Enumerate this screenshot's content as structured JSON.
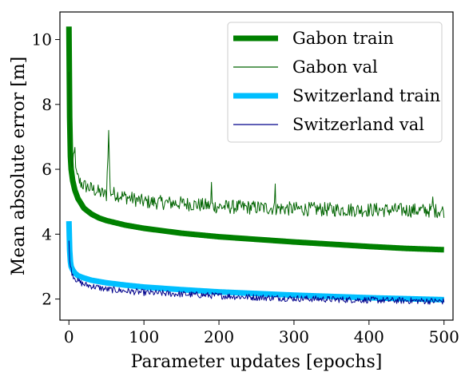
{
  "chart_data": {
    "type": "line",
    "xlabel": "Parameter updates [epochs]",
    "ylabel": "Mean absolute error [m]",
    "xlim": [
      -12,
      512
    ],
    "ylim": [
      1.35,
      10.85
    ],
    "xticks": [
      0,
      100,
      200,
      300,
      400,
      500
    ],
    "yticks": [
      2,
      4,
      6,
      8,
      10
    ],
    "x_tick_labels": [
      "0",
      "100",
      "200",
      "300",
      "400",
      "500"
    ],
    "y_tick_labels": [
      "2",
      "4",
      "6",
      "8",
      "10"
    ],
    "grid": false,
    "legend": {
      "position": "top-right",
      "entries": [
        "Gabon train",
        "Gabon val",
        "Switzerland train",
        "Switzerland val"
      ]
    },
    "series": [
      {
        "name": "Gabon train",
        "color": "#008000",
        "style": "thick",
        "x": [
          0,
          1,
          2,
          3,
          5,
          8,
          12,
          20,
          30,
          40,
          50,
          75,
          100,
          150,
          200,
          250,
          300,
          350,
          400,
          450,
          500
        ],
        "y": [
          10.4,
          7.6,
          6.4,
          6.0,
          5.65,
          5.35,
          5.1,
          4.8,
          4.62,
          4.5,
          4.42,
          4.28,
          4.18,
          4.03,
          3.92,
          3.84,
          3.76,
          3.69,
          3.62,
          3.56,
          3.52
        ]
      },
      {
        "name": "Gabon val",
        "color": "#006400",
        "style": "thin-noisy",
        "x": [
          0,
          1,
          2,
          3,
          5,
          8,
          10,
          15,
          20,
          30,
          40,
          50,
          53,
          55,
          60,
          75,
          100,
          150,
          200,
          250,
          300,
          350,
          400,
          450,
          500
        ],
        "y": [
          9.0,
          7.2,
          6.6,
          6.2,
          6.1,
          6.6,
          5.8,
          5.6,
          5.5,
          5.4,
          5.3,
          5.2,
          7.2,
          5.3,
          5.25,
          5.15,
          5.0,
          4.95,
          4.85,
          4.82,
          4.78,
          4.76,
          4.75,
          4.74,
          4.72
        ],
        "spikes": [
          [
            53,
            7.2
          ],
          [
            190,
            5.6
          ],
          [
            275,
            5.55
          ],
          [
            485,
            5.15
          ]
        ]
      },
      {
        "name": "Switzerland train",
        "color": "#00BFFF",
        "style": "thick",
        "x": [
          0,
          1,
          2,
          3,
          5,
          8,
          12,
          20,
          30,
          50,
          75,
          100,
          150,
          200,
          250,
          300,
          350,
          400,
          450,
          500
        ],
        "y": [
          4.4,
          3.5,
          3.15,
          3.0,
          2.9,
          2.8,
          2.72,
          2.65,
          2.58,
          2.5,
          2.43,
          2.37,
          2.29,
          2.22,
          2.17,
          2.12,
          2.08,
          2.04,
          2.01,
          1.98
        ]
      },
      {
        "name": "Switzerland val",
        "color": "#00008B",
        "style": "thin-noisy",
        "x": [
          0,
          1,
          2,
          3,
          5,
          8,
          12,
          20,
          30,
          50,
          75,
          100,
          150,
          200,
          250,
          300,
          350,
          400,
          450,
          500
        ],
        "y": [
          3.8,
          3.2,
          3.0,
          2.9,
          2.75,
          2.65,
          2.55,
          2.45,
          2.4,
          2.3,
          2.25,
          2.2,
          2.15,
          2.1,
          2.05,
          2.02,
          1.99,
          1.97,
          1.95,
          1.93
        ]
      }
    ]
  }
}
